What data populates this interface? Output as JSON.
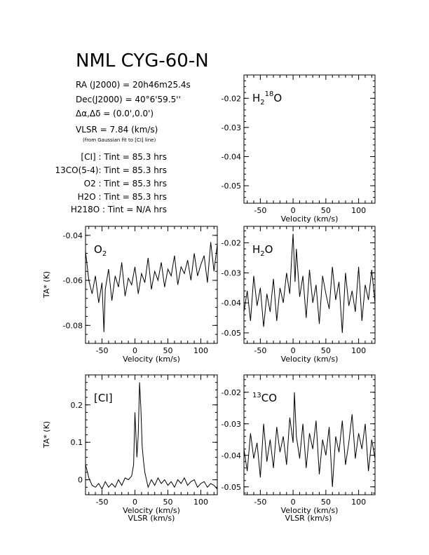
{
  "title": "NML CYG-60-N",
  "info": {
    "ra": "RA (J2000) = 20h46m25.4s",
    "dec": "Dec(J2000) = 40°6'59.5''",
    "offset": "Δα,Δδ = (0.0',0.0')",
    "vlsr": "VLSR = 7.84 (km/s)",
    "vlsr_note": "(from Gaussian fit to [CI] line)",
    "tint": [
      "[CI] : Tint = 85.3 hrs",
      "13CO(5-4): Tint = 85.3 hrs",
      "O2 : Tint = 85.3 hrs",
      "H2O : Tint = 85.3 hrs",
      "H218O : Tint = N/A hrs"
    ]
  },
  "chart_data": [
    {
      "type": "line",
      "panel": "H2 18O",
      "label": "H2 18O",
      "xlabel": "Velocity (km/s)",
      "ylabel": "",
      "xlim": [
        -75,
        125
      ],
      "ylim": [
        -0.056,
        -0.012
      ],
      "xticks": [
        -50,
        0,
        50,
        100
      ],
      "yticks": [
        -0.05,
        -0.04,
        -0.03,
        -0.02
      ],
      "series": []
    },
    {
      "type": "line",
      "panel": "O2",
      "label": "O2",
      "xlabel": "Velocity (km/s)",
      "ylabel": "TA* (K)",
      "xlim": [
        -75,
        125
      ],
      "ylim": [
        -0.088,
        -0.036
      ],
      "xticks": [
        -50,
        0,
        50,
        100
      ],
      "yticks": [
        -0.08,
        -0.06,
        -0.04
      ],
      "series": [
        {
          "x": [
            -75,
            -70,
            -65,
            -60,
            -55,
            -50,
            -47,
            -45,
            -40,
            -35,
            -30,
            -25,
            -20,
            -15,
            -10,
            -5,
            0,
            5,
            10,
            15,
            20,
            25,
            30,
            35,
            40,
            45,
            50,
            55,
            60,
            65,
            70,
            75,
            80,
            85,
            90,
            95,
            100,
            105,
            110,
            115,
            120,
            125
          ],
          "y": [
            -0.047,
            -0.06,
            -0.066,
            -0.058,
            -0.07,
            -0.061,
            -0.083,
            -0.064,
            -0.055,
            -0.069,
            -0.058,
            -0.063,
            -0.052,
            -0.067,
            -0.059,
            -0.062,
            -0.054,
            -0.066,
            -0.057,
            -0.061,
            -0.05,
            -0.064,
            -0.056,
            -0.06,
            -0.052,
            -0.063,
            -0.055,
            -0.058,
            -0.049,
            -0.062,
            -0.054,
            -0.057,
            -0.051,
            -0.06,
            -0.048,
            -0.058,
            -0.053,
            -0.049,
            -0.061,
            -0.043,
            -0.056,
            -0.044
          ]
        }
      ]
    },
    {
      "type": "line",
      "panel": "H2O",
      "label": "H2O",
      "xlabel": "Velocity (km/s)",
      "ylabel": "",
      "xlim": [
        -75,
        125
      ],
      "ylim": [
        -0.0535,
        -0.0145
      ],
      "xticks": [
        -50,
        0,
        50,
        100
      ],
      "yticks": [
        -0.05,
        -0.04,
        -0.03,
        -0.02
      ],
      "series": [
        {
          "x": [
            -75,
            -70,
            -65,
            -60,
            -55,
            -50,
            -45,
            -40,
            -35,
            -30,
            -25,
            -20,
            -15,
            -10,
            -5,
            -2,
            0,
            3,
            5,
            10,
            15,
            20,
            25,
            30,
            35,
            40,
            45,
            50,
            55,
            60,
            65,
            70,
            75,
            80,
            85,
            90,
            95,
            100,
            105,
            110,
            115,
            120,
            125
          ],
          "y": [
            -0.043,
            -0.036,
            -0.046,
            -0.031,
            -0.041,
            -0.035,
            -0.048,
            -0.037,
            -0.043,
            -0.032,
            -0.046,
            -0.035,
            -0.04,
            -0.03,
            -0.037,
            -0.024,
            -0.017,
            -0.033,
            -0.022,
            -0.038,
            -0.031,
            -0.045,
            -0.029,
            -0.04,
            -0.034,
            -0.047,
            -0.031,
            -0.037,
            -0.042,
            -0.028,
            -0.039,
            -0.033,
            -0.05,
            -0.03,
            -0.041,
            -0.036,
            -0.043,
            -0.028,
            -0.046,
            -0.034,
            -0.039,
            -0.029,
            -0.04
          ]
        }
      ]
    },
    {
      "type": "line",
      "panel": "[CI]",
      "label": "[CI]",
      "xlabel": "Velocity (km/s)",
      "ylabel": "TA* (K)",
      "xlim": [
        -75,
        125
      ],
      "ylim": [
        -0.04,
        0.28
      ],
      "xticks": [
        -50,
        0,
        50,
        100
      ],
      "yticks": [
        0,
        0.1,
        0.2
      ],
      "series": [
        {
          "x": [
            -75,
            -72,
            -70,
            -65,
            -60,
            -55,
            -50,
            -45,
            -40,
            -35,
            -30,
            -25,
            -20,
            -15,
            -10,
            -5,
            -2,
            0,
            1,
            3,
            5,
            7,
            9,
            11,
            13,
            15,
            20,
            25,
            30,
            35,
            40,
            45,
            50,
            55,
            60,
            65,
            70,
            75,
            80,
            85,
            90,
            95,
            100,
            105,
            110,
            115,
            120,
            125
          ],
          "y": [
            0.04,
            0.02,
            0.005,
            -0.015,
            -0.02,
            -0.01,
            -0.025,
            -0.005,
            -0.02,
            -0.01,
            -0.02,
            0.0,
            -0.015,
            0.005,
            0.0,
            0.01,
            0.04,
            0.18,
            0.14,
            0.06,
            0.12,
            0.26,
            0.19,
            0.09,
            0.05,
            0.02,
            -0.02,
            0.0,
            -0.015,
            0.005,
            -0.01,
            0.0,
            -0.015,
            -0.005,
            -0.02,
            0.0,
            -0.01,
            0.005,
            -0.015,
            -0.005,
            0.0,
            -0.02,
            -0.01,
            -0.005,
            -0.02,
            -0.01,
            -0.015,
            -0.025
          ]
        }
      ]
    },
    {
      "type": "line",
      "panel": "13CO",
      "label": "13CO",
      "xlabel": "Velocity (km/s)",
      "ylabel": "",
      "xlim": [
        -75,
        125
      ],
      "ylim": [
        -0.0525,
        -0.0145
      ],
      "xticks": [
        -50,
        0,
        50,
        100
      ],
      "yticks": [
        -0.05,
        -0.04,
        -0.03,
        -0.02
      ],
      "series": [
        {
          "x": [
            -75,
            -70,
            -65,
            -60,
            -55,
            -50,
            -45,
            -40,
            -35,
            -30,
            -25,
            -20,
            -15,
            -10,
            -5,
            0,
            2,
            5,
            10,
            15,
            20,
            25,
            30,
            35,
            40,
            45,
            50,
            55,
            60,
            65,
            70,
            75,
            80,
            85,
            90,
            95,
            100,
            105,
            110,
            115,
            120,
            125
          ],
          "y": [
            -0.038,
            -0.045,
            -0.033,
            -0.041,
            -0.036,
            -0.047,
            -0.03,
            -0.042,
            -0.035,
            -0.044,
            -0.031,
            -0.039,
            -0.034,
            -0.043,
            -0.028,
            -0.036,
            -0.02,
            -0.034,
            -0.041,
            -0.03,
            -0.044,
            -0.033,
            -0.038,
            -0.029,
            -0.046,
            -0.035,
            -0.04,
            -0.031,
            -0.05,
            -0.034,
            -0.039,
            -0.029,
            -0.043,
            -0.036,
            -0.027,
            -0.041,
            -0.033,
            -0.038,
            -0.03,
            -0.045,
            -0.035,
            -0.041
          ]
        }
      ]
    }
  ],
  "bottom_xlabel": "VLSR (km/s)"
}
